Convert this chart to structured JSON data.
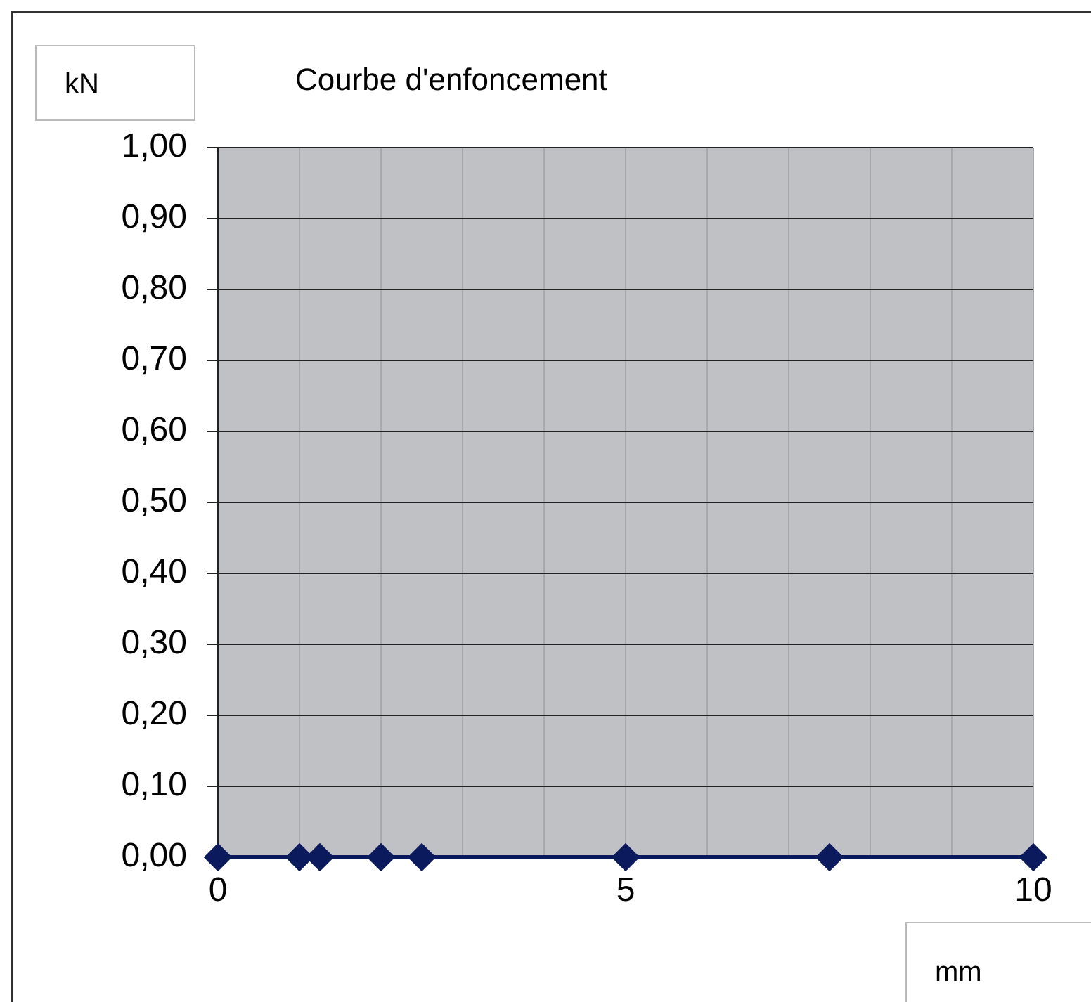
{
  "chart_data": {
    "type": "line",
    "title": "Courbe d'enfoncement",
    "xlabel": "mm",
    "ylabel": "kN",
    "x": [
      0,
      1,
      1.25,
      2,
      2.5,
      5,
      7.5,
      10
    ],
    "series": [
      {
        "color": "#0a1a5c",
        "values": [
          0,
          0,
          0,
          0,
          0,
          0,
          0,
          0
        ]
      }
    ],
    "xlim": [
      0,
      10
    ],
    "xticks": [
      0,
      {
        "value": 1,
        "label": null
      },
      {
        "value": 2,
        "label": null
      },
      {
        "value": 3,
        "label": null
      },
      {
        "value": 4,
        "label": null
      },
      5,
      {
        "value": 6,
        "label": null
      },
      {
        "value": 7,
        "label": null
      },
      {
        "value": 8,
        "label": null
      },
      {
        "value": 9,
        "label": null
      },
      10
    ],
    "ylim": [
      0,
      1
    ],
    "yticks": [
      {
        "value": 0,
        "label": "0,00"
      },
      {
        "value": 0.1,
        "label": "0,10"
      },
      {
        "value": 0.2,
        "label": "0,20"
      },
      {
        "value": 0.3,
        "label": "0,30"
      },
      {
        "value": 0.4,
        "label": "0,40"
      },
      {
        "value": 0.5,
        "label": "0,50"
      },
      {
        "value": 0.6,
        "label": "0,60"
      },
      {
        "value": 0.7,
        "label": "0,70"
      },
      {
        "value": 0.8,
        "label": "0,80"
      },
      {
        "value": 0.9,
        "label": "0,90"
      },
      {
        "value": 1,
        "label": "1,00"
      }
    ],
    "grid": true,
    "marker": "diamond",
    "line_style": "solid",
    "legend": false
  }
}
